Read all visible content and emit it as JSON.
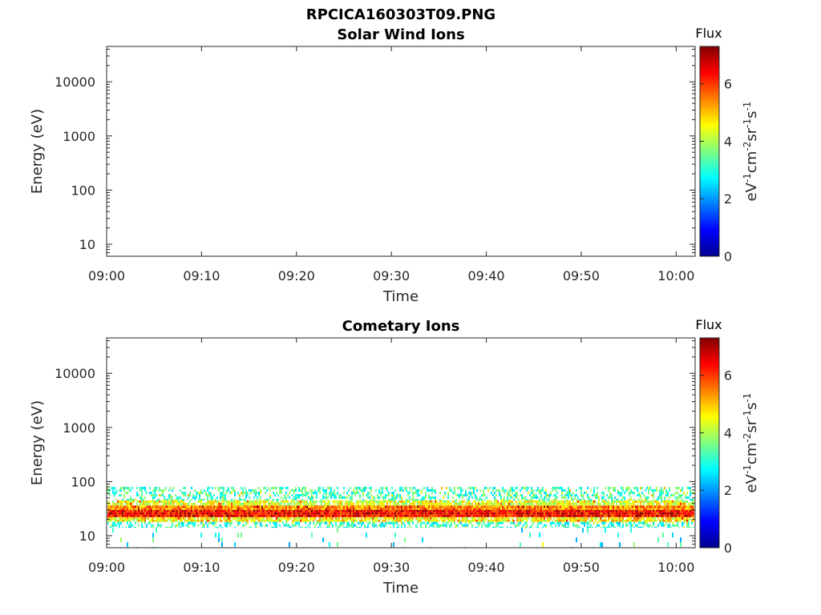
{
  "figure_title": "RPCICA160303T09.PNG",
  "chart_data": [
    {
      "type": "heatmap",
      "title": "Solar Wind Ions",
      "xlabel": "Time",
      "ylabel": "Energy (eV)",
      "x_ticks": [
        "09:00",
        "09:10",
        "09:20",
        "09:30",
        "09:40",
        "09:50",
        "10:00"
      ],
      "xlim": [
        "09:00",
        "10:02"
      ],
      "y_scale": "log",
      "y_ticks": [
        "10",
        "100",
        "1000",
        "10000"
      ],
      "ylim": [
        6,
        45000
      ],
      "colorbar": {
        "title": "Flux",
        "label": "eV-1cm-2sr-1s-1",
        "ticks": [
          "0",
          "2",
          "4",
          "6"
        ],
        "range": [
          0,
          7.3
        ],
        "colormap": "jet"
      },
      "bands": []
    },
    {
      "type": "heatmap",
      "title": "Cometary Ions",
      "xlabel": "Time",
      "ylabel": "Energy (eV)",
      "x_ticks": [
        "09:00",
        "09:10",
        "09:20",
        "09:30",
        "09:40",
        "09:50",
        "10:00"
      ],
      "xlim": [
        "09:00",
        "10:02"
      ],
      "y_scale": "log",
      "y_ticks": [
        "10",
        "100",
        "1000",
        "10000"
      ],
      "ylim": [
        6,
        45000
      ],
      "colorbar": {
        "title": "Flux",
        "label": "eV-1cm-2sr-1s-1",
        "ticks": [
          "0",
          "2",
          "4",
          "6"
        ],
        "range": [
          0,
          7.3
        ],
        "colormap": "jet"
      },
      "bands": [
        {
          "energy_range_eV": [
            45,
            80
          ],
          "flux": 3.2,
          "coverage": "sparse"
        },
        {
          "energy_range_eV": [
            36,
            45
          ],
          "flux": 4.3,
          "coverage": "dense"
        },
        {
          "energy_range_eV": [
            30,
            36
          ],
          "flux": 5.4,
          "coverage": "full"
        },
        {
          "energy_range_eV": [
            22,
            30
          ],
          "flux": 6.3,
          "coverage": "full"
        },
        {
          "energy_range_eV": [
            18,
            22
          ],
          "flux": 4.6,
          "coverage": "dense"
        },
        {
          "energy_range_eV": [
            14,
            18
          ],
          "flux": 3.0,
          "coverage": "sparse"
        },
        {
          "energy_range_eV": [
            6,
            14
          ],
          "flux": 2.8,
          "coverage": "scattered"
        }
      ]
    }
  ]
}
